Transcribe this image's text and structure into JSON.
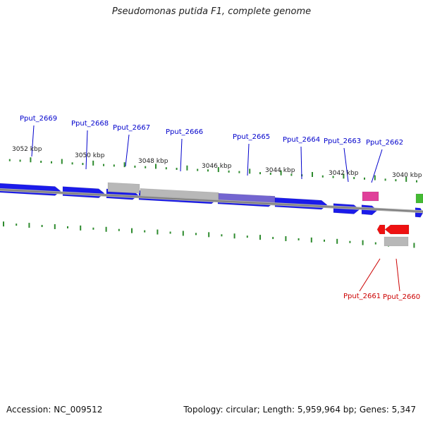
{
  "title": "Pseudomonas putida F1, complete genome",
  "footer": {
    "accession": "Accession: NC_009512",
    "summary": "Topology: circular; Length: 5,959,964 bp; Genes: 5,347"
  },
  "colors": {
    "cds": "#1b1bea",
    "highlight_cds": "#7365d0",
    "gray_feature": "#b8b8b8",
    "pink_feature": "#e0409a",
    "red_feature": "#ee1111",
    "green_feature": "#44bb33",
    "tick": "#2e8b2e",
    "backbone": "#888888",
    "label_forward": "#0000cc",
    "label_reverse": "#cc0000",
    "scale_text": "#222222"
  },
  "scale_labels": [
    "3052 kbp",
    "3050 kbp",
    "3048 kbp",
    "3046 kbp",
    "3044 kbp",
    "3042 kbp",
    "3040 kbp"
  ],
  "gene_labels": [
    {
      "text": "Pput_2669",
      "strand": "forward"
    },
    {
      "text": "Pput_2668",
      "strand": "forward"
    },
    {
      "text": "Pput_2667",
      "strand": "forward"
    },
    {
      "text": "Pput_2666",
      "strand": "forward"
    },
    {
      "text": "Pput_2665",
      "strand": "forward"
    },
    {
      "text": "Pput_2664",
      "strand": "forward"
    },
    {
      "text": "Pput_2663",
      "strand": "forward"
    },
    {
      "text": "Pput_2662",
      "strand": "forward"
    },
    {
      "text": "Pput_2661",
      "strand": "reverse"
    },
    {
      "text": "Pput_2660",
      "strand": "reverse"
    }
  ]
}
